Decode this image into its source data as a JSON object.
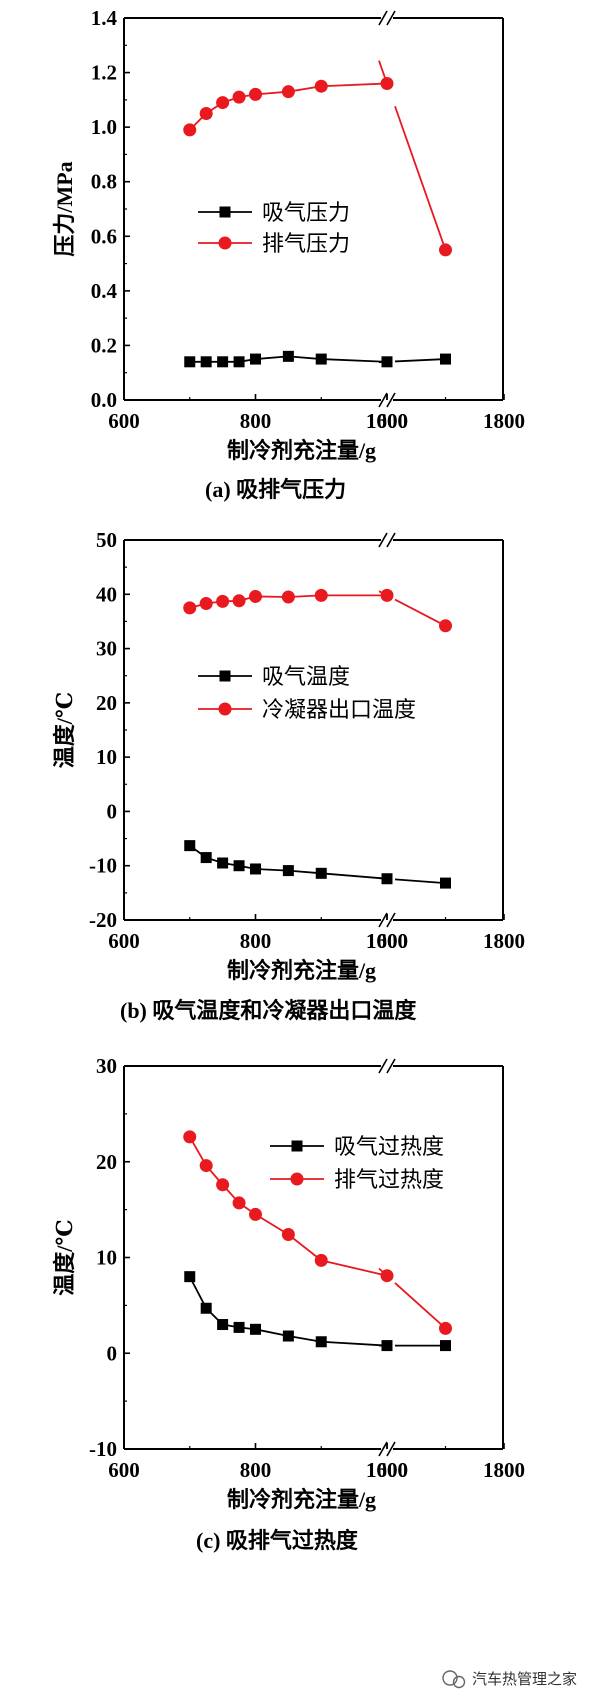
{
  "chart_data": [
    {
      "type": "line",
      "panel": "a",
      "caption": "(a)  吸排气压力",
      "xlabel": "制冷剂充注量/g",
      "ylabel": "压力/MPa",
      "x_tick_labels": [
        "600",
        "800",
        "1000",
        "1600",
        "1800"
      ],
      "y_tick_labels": [
        "0.0",
        "0.2",
        "0.4",
        "0.6",
        "0.8",
        "1.0",
        "1.2",
        "1.4"
      ],
      "xlim": [
        600,
        1800
      ],
      "x_break": [
        1000,
        1600
      ],
      "ylim": [
        0,
        1.4
      ],
      "legend_position": "center-left",
      "series": [
        {
          "name": "吸气压力",
          "color": "#000000",
          "marker": "square",
          "x": [
            700,
            725,
            750,
            775,
            800,
            850,
            900,
            1000,
            1700
          ],
          "y": [
            0.14,
            0.14,
            0.14,
            0.14,
            0.15,
            0.16,
            0.15,
            0.14,
            0.15
          ]
        },
        {
          "name": "排气压力",
          "color": "#e8191f",
          "marker": "circle",
          "x": [
            700,
            725,
            750,
            775,
            800,
            850,
            900,
            1000,
            1700
          ],
          "y": [
            0.99,
            1.05,
            1.09,
            1.11,
            1.12,
            1.13,
            1.15,
            1.16,
            0.55
          ]
        }
      ]
    },
    {
      "type": "line",
      "panel": "b",
      "caption": "(b)  吸气温度和冷凝器出口温度",
      "xlabel": "制冷剂充注量/g",
      "ylabel": "温度/℃",
      "x_tick_labels": [
        "600",
        "800",
        "1000",
        "1600",
        "1800"
      ],
      "y_tick_labels": [
        "-20",
        "-10",
        "0",
        "10",
        "20",
        "30",
        "40",
        "50"
      ],
      "xlim": [
        600,
        1800
      ],
      "x_break": [
        1000,
        1600
      ],
      "ylim": [
        -20,
        50
      ],
      "legend_position": "center-left",
      "series": [
        {
          "name": "吸气温度",
          "color": "#000000",
          "marker": "square",
          "x": [
            700,
            725,
            750,
            775,
            800,
            850,
            900,
            1000,
            1700
          ],
          "y": [
            -6.3,
            -8.5,
            -9.5,
            -10.0,
            -10.6,
            -10.9,
            -11.4,
            -12.4,
            -13.2
          ]
        },
        {
          "name": "冷凝器出口温度",
          "color": "#e8191f",
          "marker": "circle",
          "x": [
            700,
            725,
            750,
            775,
            800,
            850,
            900,
            1000,
            1700
          ],
          "y": [
            37.5,
            38.3,
            38.7,
            38.8,
            39.6,
            39.5,
            39.8,
            39.8,
            34.2
          ]
        }
      ]
    },
    {
      "type": "line",
      "panel": "c",
      "caption": "(c)  吸排气过热度",
      "xlabel": "制冷剂充注量/g",
      "ylabel": "温度/℃",
      "x_tick_labels": [
        "600",
        "800",
        "1000",
        "1600",
        "1800"
      ],
      "y_tick_labels": [
        "-10",
        "0",
        "10",
        "20",
        "30"
      ],
      "xlim": [
        600,
        1800
      ],
      "x_break": [
        1000,
        1600
      ],
      "ylim": [
        -10,
        30
      ],
      "legend_position": "top-right",
      "series": [
        {
          "name": "吸气过热度",
          "color": "#000000",
          "marker": "square",
          "x": [
            700,
            725,
            750,
            775,
            800,
            850,
            900,
            1000,
            1700
          ],
          "y": [
            8.0,
            4.7,
            3.0,
            2.7,
            2.5,
            1.8,
            1.2,
            0.8,
            0.8
          ]
        },
        {
          "name": "排气过热度",
          "color": "#e8191f",
          "marker": "circle",
          "x": [
            700,
            725,
            750,
            775,
            800,
            850,
            900,
            1000,
            1700
          ],
          "y": [
            22.6,
            19.6,
            17.6,
            15.7,
            14.5,
            12.4,
            9.7,
            8.1,
            2.6
          ]
        }
      ]
    }
  ],
  "watermark": {
    "text": "汽车热管理之家",
    "icon": "wechat-icon"
  }
}
